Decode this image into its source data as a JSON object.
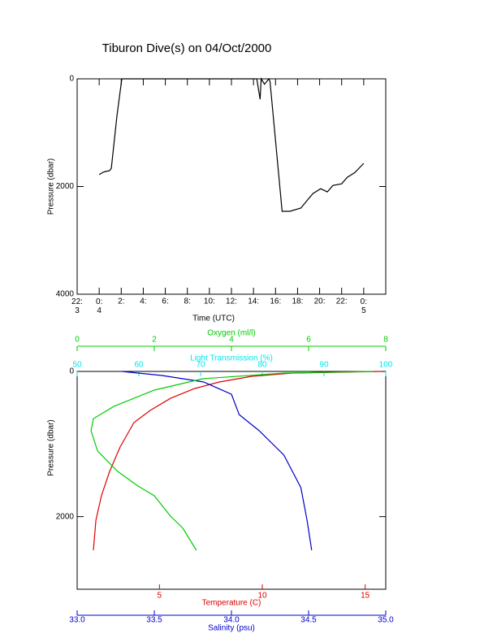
{
  "chart_data": [
    {
      "type": "line",
      "title": "Tiburon Dive(s) on 04/Oct/2000",
      "xlabel": "Time (UTC)",
      "ylabel": "Pressure (dbar)",
      "color": "#000000",
      "x": [
        2.0,
        2.36,
        2.58,
        2.95,
        3.1,
        3.6,
        4.05,
        16.3,
        16.6,
        16.7,
        17.0,
        17.4,
        17.5,
        18.6,
        19.3,
        20.3,
        20.9,
        21.4,
        22.1,
        22.7,
        23.2,
        24.0,
        24.5,
        25.2,
        26.0
      ],
      "values": [
        1780,
        1735,
        1720,
        1705,
        1660,
        700,
        0,
        0,
        380,
        0,
        100,
        0,
        50,
        2460,
        2460,
        2400,
        2250,
        2130,
        2040,
        2100,
        1980,
        1950,
        1830,
        1740,
        1570
      ],
      "xlim": [
        0,
        28
      ],
      "ylim": [
        4000,
        0
      ],
      "yticks": [
        0,
        2000,
        4000
      ],
      "xticks": [
        {
          "value": 0,
          "label": "22:\n3"
        },
        {
          "value": 2,
          "label": "0:\n4"
        },
        {
          "value": 4,
          "label": "2:"
        },
        {
          "value": 6,
          "label": "4:"
        },
        {
          "value": 8,
          "label": "6:"
        },
        {
          "value": 10,
          "label": "8:"
        },
        {
          "value": 12,
          "label": "10:"
        },
        {
          "value": 14,
          "label": "12:"
        },
        {
          "value": 16,
          "label": "14:"
        },
        {
          "value": 18,
          "label": "16:"
        },
        {
          "value": 20,
          "label": "18:"
        },
        {
          "value": 22,
          "label": "20:"
        },
        {
          "value": 24,
          "label": "22:"
        },
        {
          "value": 26,
          "label": "0:\n5"
        }
      ]
    },
    {
      "type": "line",
      "ylabel": "Pressure (dbar)",
      "ylim": [
        3000,
        0
      ],
      "yticks": [
        0,
        2000
      ],
      "x_axes": [
        {
          "label": "Oxygen (ml/l)",
          "color": "#00cc00",
          "xlim": [
            0,
            8
          ],
          "xticks": [
            0,
            2,
            4,
            6,
            8
          ]
        },
        {
          "label": "Light Transmission (%)",
          "color": "#00e5ee",
          "xlim": [
            50,
            100
          ],
          "xticks": [
            50,
            60,
            70,
            80,
            90,
            100
          ]
        },
        {
          "label": "Temperature (C)",
          "color": "#dd0000",
          "xlim": [
            1,
            16
          ],
          "xticks": [
            5,
            10,
            15
          ]
        },
        {
          "label": "Salinity (psu)",
          "color": "#0000cc",
          "xlim": [
            33,
            35
          ],
          "xticks": [
            {
              "value": 33,
              "label": "33.0"
            },
            {
              "value": 33.5,
              "label": "33.5"
            },
            {
              "value": 34,
              "label": "34.0"
            },
            {
              "value": 34.5,
              "label": "34.5"
            },
            {
              "value": 35,
              "label": "35.0"
            }
          ]
        }
      ],
      "series": [
        {
          "axis": 2,
          "color": "#dd0000",
          "x": [
            1.79,
            1.91,
            2.18,
            2.58,
            3.09,
            3.76,
            4.55,
            5.54,
            6.72,
            7.91,
            9.49,
            11.46,
            15.8
          ],
          "values": [
            2463,
            2050,
            1713,
            1377,
            1041,
            705,
            537,
            370,
            235,
            146,
            67,
            22,
            0
          ]
        },
        {
          "axis": 3,
          "color": "#0000cc",
          "x": [
            33.29,
            33.55,
            33.82,
            34.0,
            34.05,
            34.18,
            34.34,
            34.45,
            34.49,
            34.52
          ],
          "values": [
            0,
            56,
            146,
            314,
            594,
            817,
            1153,
            1601,
            2050,
            2463
          ]
        },
        {
          "axis": 0,
          "color": "#00cc00",
          "x": [
            7.68,
            5.37,
            3.26,
            2.0,
            0.95,
            0.42,
            0.36,
            0.53,
            1.05,
            1.58,
            2.0,
            2.42,
            2.74,
            3.09
          ],
          "values": [
            0,
            22,
            101,
            258,
            482,
            650,
            817,
            1097,
            1377,
            1579,
            1713,
            1993,
            2161,
            2463
          ]
        }
      ]
    }
  ]
}
